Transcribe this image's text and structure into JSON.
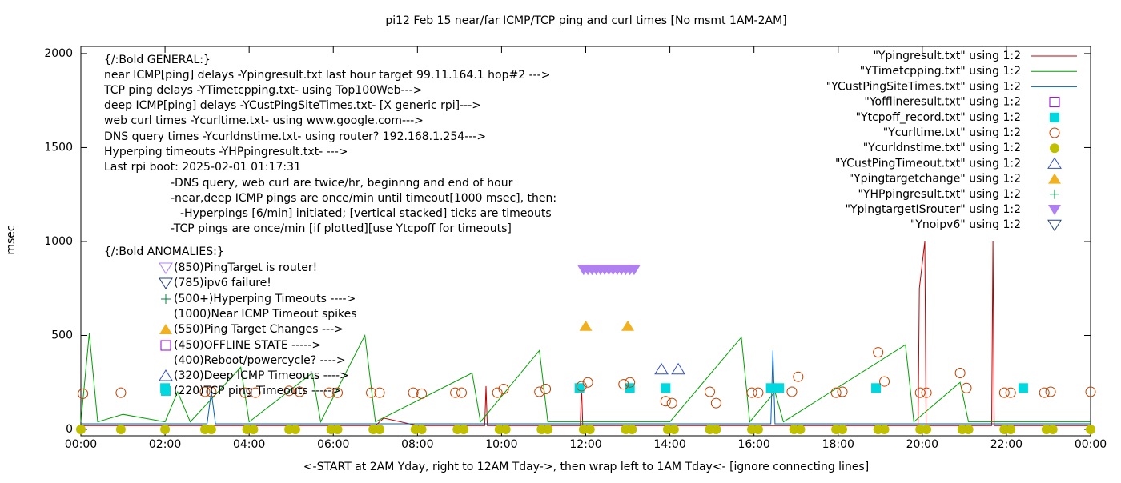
{
  "chart_data": {
    "type": "scatter",
    "title": "pi12 Feb 15  near/far ICMP/TCP ping and curl times [No msmt 1AM-2AM]",
    "x_label": "<-START at 2AM Yday, right to 12AM Tday->, then wrap left to 1AM Tday<- [ignore connecting lines]",
    "y_label": "msec",
    "xlim": [
      0,
      24
    ],
    "ylim": [
      -34,
      2038
    ],
    "xticks": [
      {
        "value": 0,
        "label": "00:00"
      },
      {
        "value": 2,
        "label": "02:00"
      },
      {
        "value": 4,
        "label": "04:00"
      },
      {
        "value": 6,
        "label": "06:00"
      },
      {
        "value": 8,
        "label": "08:00"
      },
      {
        "value": 10,
        "label": "10:00"
      },
      {
        "value": 12,
        "label": "12:00"
      },
      {
        "value": 14,
        "label": "14:00"
      },
      {
        "value": 16,
        "label": "16:00"
      },
      {
        "value": 18,
        "label": "18:00"
      },
      {
        "value": 20,
        "label": "20:00"
      },
      {
        "value": 22,
        "label": "22:00"
      },
      {
        "value": 24,
        "label": "00:00"
      }
    ],
    "yticks": [
      0,
      500,
      1000,
      1500,
      2000
    ],
    "grid": false,
    "legend": "top-right",
    "annotations": [
      "{/:Bold GENERAL:}",
      "near ICMP[ping] delays -Ypingresult.txt last hour target 99.11.164.1 hop#2 --->",
      "TCP ping delays -YTimetcpping.txt- using Top100Web--->",
      "deep ICMP[ping] delays -YCustPingSiteTimes.txt- [X generic rpi]--->",
      "web curl times -Ycurltime.txt- using www.google.com--->",
      "DNS query times -Ycurldnstime.txt- using router? 192.168.1.254--->",
      "Hyperping timeouts -YHPpingresult.txt- --->",
      "Last rpi boot: 2025-02-01 01:17:31",
      "-DNS query, web curl are twice/hr, beginnng and end of hour",
      "-near,deep ICMP pings are once/min until timeout[1000 msec], then:",
      "-Hyperpings [6/min] initiated; [vertical stacked] ticks are timeouts",
      "-TCP pings are once/min [if plotted][use Ytcpoff for timeouts]",
      "{/:Bold ANOMALIES:}",
      "(850)PingTarget is router!",
      "(785)ipv6 failure!",
      "(500+)Hyperping Timeouts ---->",
      "(1000)Near ICMP Timeout spikes",
      "(550)Ping Target Changes --->",
      "(450)OFFLINE STATE ----->",
      "(400)Reboot/powercycle? ---->",
      "(320)Deep ICMP Timeouts ---->",
      "(220)TCP ping Timeouts ----->"
    ],
    "series": [
      {
        "name": "\"Ypingresult.txt\" using 1:2",
        "color": "#c00000",
        "marker": "line",
        "x": [
          0,
          1,
          2,
          3,
          4,
          5,
          6,
          7,
          7.2,
          8,
          9,
          9.6,
          9.63,
          9.66,
          10,
          11,
          11.87,
          11.9,
          11.93,
          13,
          14,
          15,
          16,
          17,
          18,
          19,
          19.9,
          19.93,
          20.06,
          20.09,
          20.2,
          21,
          21.65,
          21.68,
          21.71,
          22,
          23,
          24
        ],
        "values": [
          20,
          20,
          20,
          20,
          20,
          20,
          20,
          20,
          60,
          20,
          20,
          20,
          230,
          20,
          20,
          20,
          20,
          230,
          20,
          20,
          20,
          20,
          20,
          20,
          20,
          20,
          20,
          750,
          1000,
          20,
          20,
          20,
          20,
          1000,
          20,
          20,
          20,
          20
        ]
      },
      {
        "name": "\"YTimetcpping.txt\" using 1:2",
        "color": "#00a000",
        "marker": "line",
        "x": [
          0,
          0.2,
          0.4,
          1.0,
          2.0,
          2.3,
          2.6,
          3.8,
          4,
          5.5,
          5.7,
          6.75,
          7,
          9.3,
          9.5,
          10.9,
          11.1,
          12,
          14,
          15.7,
          15.9,
          16.5,
          16.7,
          19.6,
          19.8,
          20.9,
          21.1,
          23,
          24
        ],
        "values": [
          40,
          510,
          40,
          80,
          40,
          200,
          40,
          330,
          40,
          300,
          40,
          500,
          40,
          300,
          40,
          420,
          40,
          40,
          40,
          490,
          40,
          200,
          40,
          450,
          40,
          250,
          40,
          40,
          40
        ]
      },
      {
        "name": "\"YCustPingSiteTimes.txt\" using 1:2",
        "color": "#0060c0",
        "marker": "line",
        "x": [
          0,
          3,
          3.1,
          3.2,
          8,
          12,
          16.4,
          16.45,
          16.5,
          20,
          24
        ],
        "values": [
          30,
          30,
          200,
          30,
          30,
          30,
          30,
          420,
          30,
          30,
          30
        ]
      },
      {
        "name": "\"Yofflineresult.txt\" using 1:2",
        "color": "#9400d3",
        "marker": "square-open",
        "x": [],
        "values": []
      },
      {
        "name": "\"Ytcpoff_record.txt\" using 1:2",
        "color": "#00d8e0",
        "marker": "square",
        "x": [
          2.0,
          11.85,
          13.05,
          13.9,
          16.4,
          16.6,
          18.9,
          22.4
        ],
        "values": [
          220,
          220,
          220,
          220,
          220,
          220,
          220,
          220
        ]
      },
      {
        "name": "\"Ycurltime.txt\" using 1:2",
        "color": "#c04000",
        "marker": "circle-open",
        "x": [
          0.05,
          0.95,
          2.95,
          3.1,
          3.9,
          4.15,
          4.95,
          5.2,
          5.9,
          6.1,
          6.9,
          7.1,
          7.9,
          8.1,
          8.9,
          9.05,
          9.9,
          10.05,
          10.9,
          11.05,
          11.9,
          12.05,
          12.9,
          13.05,
          13.9,
          14.05,
          14.95,
          15.1,
          15.95,
          16.1,
          16.9,
          17.05,
          17.95,
          18.1,
          18.95,
          19.1,
          19.95,
          20.1,
          20.9,
          21.05,
          21.95,
          22.1,
          22.9,
          23.05,
          24
        ],
        "values": [
          190,
          195,
          200,
          200,
          195,
          195,
          205,
          200,
          195,
          195,
          195,
          195,
          195,
          190,
          195,
          195,
          195,
          215,
          200,
          215,
          230,
          250,
          240,
          250,
          150,
          140,
          200,
          140,
          195,
          195,
          200,
          280,
          195,
          200,
          410,
          255,
          195,
          195,
          300,
          220,
          195,
          195,
          195,
          200,
          200
        ]
      },
      {
        "name": "\"Ycurldnstime.txt\" using 1:2",
        "color": "#c0c000",
        "marker": "circle",
        "x": [
          0,
          0.95,
          2.0,
          2.95,
          3.1,
          3.95,
          4.1,
          4.95,
          5.1,
          5.95,
          6.1,
          6.95,
          7.1,
          7.95,
          8.1,
          8.95,
          9.1,
          9.95,
          10.1,
          10.95,
          11.1,
          11.95,
          12.1,
          12.95,
          13.1,
          13.95,
          14.1,
          14.95,
          15.1,
          15.95,
          16.1,
          16.95,
          17.1,
          17.95,
          18.1,
          18.95,
          19.1,
          19.95,
          20.1,
          20.95,
          21.1,
          21.95,
          22.1,
          22.95,
          23.1,
          24
        ],
        "values": [
          0,
          0,
          0,
          0,
          0,
          0,
          0,
          0,
          0,
          0,
          0,
          0,
          0,
          0,
          0,
          0,
          0,
          0,
          0,
          0,
          0,
          0,
          0,
          0,
          0,
          0,
          0,
          0,
          0,
          0,
          0,
          0,
          0,
          0,
          0,
          0,
          0,
          0,
          0,
          0,
          0,
          0,
          0,
          0,
          0,
          0
        ]
      },
      {
        "name": "\"YCustPingTimeout.txt\" using 1:2",
        "color": "#3050c0",
        "marker": "triangle-open",
        "x": [
          13.8,
          14.2
        ],
        "values": [
          320,
          320
        ]
      },
      {
        "name": "\"Ypingtargetchange\" using 1:2",
        "color": "#f0b020",
        "marker": "triangle",
        "x": [
          12.0,
          13.0
        ],
        "values": [
          550,
          550
        ]
      },
      {
        "name": "\"YHPpingresult.txt\" using 1:2",
        "color": "#008040",
        "marker": "plus",
        "x": [],
        "values": []
      },
      {
        "name": "\"YpingtargetISrouter\" using 1:2",
        "color": "#b080f0",
        "marker": "triangle-down",
        "x": [
          11.95,
          12.05,
          12.15,
          12.25,
          12.35,
          12.45,
          12.55,
          12.65,
          12.75,
          12.85,
          12.95,
          13.05,
          13.15
        ],
        "values": [
          850,
          850,
          850,
          850,
          850,
          850,
          850,
          850,
          850,
          850,
          850,
          850,
          850
        ]
      },
      {
        "name": "\"Ynoipv6\" using 1:2",
        "color": "#204080",
        "marker": "triangle-down-open",
        "x": [],
        "values": []
      }
    ]
  }
}
